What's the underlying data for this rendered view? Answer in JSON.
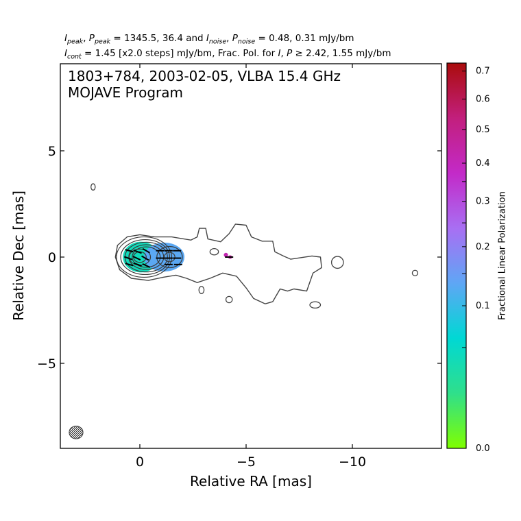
{
  "header": {
    "line1": {
      "i_peak_sym": "I",
      "i_peak_sub": "peak",
      "p_peak_sym": "P",
      "p_peak_sub": "peak",
      "peak_values": " = 1345.5, 36.4 and ",
      "i_noise_sym": "I",
      "i_noise_sub": "noise",
      "p_noise_sym": "P",
      "p_noise_sub": "noise",
      "noise_values": " = 0.48, 0.31 mJy/bm"
    },
    "line2": {
      "i_cont_sym": "I",
      "i_cont_sub": "cont",
      "cont_text": " = 1.45 [x2.0 steps] mJy/bm, Frac. Pol. for ",
      "i_sym": "I",
      "comma": ", ",
      "p_sym": "P",
      "threshold_text": " ≥ 2.42, 1.55 mJy/bm"
    }
  },
  "annotation": {
    "line1": "1803+784, 2003-02-05, VLBA 15.4 GHz",
    "line2": "MOJAVE Program"
  },
  "chart_data": {
    "type": "contour",
    "source": "1803+784",
    "epoch": "2003-02-05",
    "instrument": "VLBA 15.4 GHz",
    "program": "MOJAVE Program",
    "xlabel": "Relative RA [mas]",
    "ylabel": "Relative Dec [mas]",
    "xlim": [
      3.8,
      -14.1
    ],
    "ylim": [
      -9.0,
      9.2
    ],
    "x_ticks": [
      0,
      -5,
      -10
    ],
    "x_tick_labels": [
      "0",
      "−5",
      "−10"
    ],
    "y_ticks": [
      5,
      0,
      -5
    ],
    "y_tick_labels": [
      "5",
      "0",
      "−5"
    ],
    "grid": false,
    "i_peak_mjy_per_beam": 1345.5,
    "p_peak_mjy_per_beam": 36.4,
    "i_noise_mjy_per_beam": 0.48,
    "p_noise_mjy_per_beam": 0.31,
    "i_cont_lowest_mjy_per_beam": 1.45,
    "contour_step_factor": 2.0,
    "frac_pol_cut_i_mjy_per_beam": 2.42,
    "frac_pol_cut_p_mjy_per_beam": 1.55,
    "beam": {
      "x": 3.0,
      "y": -8.25,
      "major_mas": 0.65,
      "minor_mas": 0.6
    },
    "jet_outline": [
      [
        1.15,
        0.0
      ],
      [
        1.05,
        0.55
      ],
      [
        0.6,
        0.95
      ],
      [
        0.0,
        1.05
      ],
      [
        -0.7,
        0.95
      ],
      [
        -1.5,
        0.95
      ],
      [
        -2.4,
        0.8
      ],
      [
        -2.7,
        0.95
      ],
      [
        -2.8,
        1.35
      ],
      [
        -3.1,
        1.35
      ],
      [
        -3.2,
        0.85
      ],
      [
        -3.8,
        0.72
      ],
      [
        -4.2,
        1.1
      ],
      [
        -4.5,
        1.55
      ],
      [
        -5.0,
        1.5
      ],
      [
        -5.25,
        0.95
      ],
      [
        -5.75,
        0.75
      ],
      [
        -6.25,
        0.75
      ],
      [
        -6.35,
        0.25
      ],
      [
        -6.75,
        0.05
      ],
      [
        -7.1,
        -0.1
      ],
      [
        -8.1,
        0.05
      ],
      [
        -8.5,
        0.0
      ],
      [
        -8.55,
        -0.5
      ],
      [
        -8.15,
        -0.75
      ],
      [
        -7.85,
        -1.6
      ],
      [
        -7.25,
        -1.5
      ],
      [
        -6.95,
        -1.6
      ],
      [
        -6.6,
        -1.5
      ],
      [
        -6.25,
        -2.1
      ],
      [
        -5.9,
        -2.2
      ],
      [
        -5.35,
        -1.95
      ],
      [
        -5.0,
        -1.45
      ],
      [
        -4.55,
        -0.9
      ],
      [
        -3.9,
        -0.75
      ],
      [
        -3.3,
        -1.0
      ],
      [
        -2.7,
        -1.2
      ],
      [
        -2.2,
        -1.0
      ],
      [
        -1.7,
        -0.85
      ],
      [
        -1.1,
        -0.95
      ],
      [
        -0.4,
        -1.1
      ],
      [
        0.4,
        -1.0
      ],
      [
        0.95,
        -0.6
      ]
    ],
    "inner_contours": [
      {
        "x": -0.2,
        "y": 0.0,
        "rx": 1.3,
        "ry": 0.95
      },
      {
        "x": -0.25,
        "y": 0.0,
        "rx": 1.15,
        "ry": 0.82
      },
      {
        "x": -0.3,
        "y": 0.0,
        "rx": 1.0,
        "ry": 0.7
      },
      {
        "x": -0.3,
        "y": 0.0,
        "rx": 0.82,
        "ry": 0.58
      },
      {
        "x": -0.3,
        "y": 0.0,
        "rx": 0.66,
        "ry": 0.48
      },
      {
        "x": 0.0,
        "y": 0.0,
        "rx": 0.5,
        "ry": 0.38
      },
      {
        "x": 0.0,
        "y": 0.0,
        "rx": 0.3,
        "ry": 0.25
      },
      {
        "x": -1.4,
        "y": 0.0,
        "rx": 0.6,
        "ry": 0.5
      },
      {
        "x": -1.4,
        "y": 0.0,
        "rx": 0.25,
        "ry": 0.22
      }
    ],
    "isolated_components": [
      {
        "x": 2.2,
        "y": 3.3,
        "rx": 0.1,
        "ry": 0.15
      },
      {
        "x": -9.3,
        "y": -0.25,
        "rx": 0.28,
        "ry": 0.28
      },
      {
        "x": -12.95,
        "y": -0.75,
        "rx": 0.13,
        "ry": 0.13
      },
      {
        "x": -8.25,
        "y": -2.25,
        "rx": 0.25,
        "ry": 0.15
      },
      {
        "x": -4.2,
        "y": -2.0,
        "rx": 0.15,
        "ry": 0.15
      },
      {
        "x": -2.9,
        "y": -1.55,
        "rx": 0.12,
        "ry": 0.17
      },
      {
        "x": -3.5,
        "y": 0.25,
        "rx": 0.2,
        "ry": 0.15
      }
    ],
    "fractional_polarization_regions": [
      {
        "x": -0.05,
        "y": 0.0,
        "rx": 0.85,
        "ry": 0.72,
        "frac_pol": 0.04
      },
      {
        "x": -1.15,
        "y": 0.0,
        "rx": 0.95,
        "ry": 0.68,
        "frac_pol": 0.13
      },
      {
        "x": -4.05,
        "y": 0.1,
        "rx": 0.1,
        "ry": 0.1,
        "frac_pol": 0.42
      },
      {
        "x": -4.25,
        "y": 0.0,
        "rx": 0.1,
        "ry": 0.08,
        "frac_pol": 0.45
      }
    ],
    "evpa_vectors": [
      {
        "x": 0.5,
        "y": 0.3,
        "angle_deg": 15
      },
      {
        "x": 0.1,
        "y": 0.25,
        "angle_deg": 20
      },
      {
        "x": -0.3,
        "y": 0.3,
        "angle_deg": 30
      },
      {
        "x": 0.55,
        "y": -0.05,
        "angle_deg": 20
      },
      {
        "x": 0.15,
        "y": -0.05,
        "angle_deg": 25
      },
      {
        "x": -0.25,
        "y": -0.05,
        "angle_deg": 30
      },
      {
        "x": 0.5,
        "y": -0.35,
        "angle_deg": 15
      },
      {
        "x": 0.1,
        "y": -0.35,
        "angle_deg": 20
      },
      {
        "x": -0.3,
        "y": -0.4,
        "angle_deg": 25
      },
      {
        "x": -0.95,
        "y": 0.3,
        "angle_deg": 0
      },
      {
        "x": -1.35,
        "y": 0.3,
        "angle_deg": 0
      },
      {
        "x": -1.75,
        "y": 0.3,
        "angle_deg": 0
      },
      {
        "x": -0.95,
        "y": -0.05,
        "angle_deg": 0
      },
      {
        "x": -1.35,
        "y": -0.05,
        "angle_deg": 0
      },
      {
        "x": -1.75,
        "y": -0.05,
        "angle_deg": 0
      },
      {
        "x": -1.35,
        "y": -0.35,
        "angle_deg": 0
      },
      {
        "x": -1.8,
        "y": -0.35,
        "angle_deg": 0
      },
      {
        "x": -4.2,
        "y": 0.0,
        "angle_deg": 0
      }
    ],
    "colorbar": {
      "label": "Fractional Linear Polarization",
      "range": [
        0.0,
        0.73
      ],
      "scale": "sqrt",
      "ticks": [
        0.0,
        0.05,
        0.1,
        0.15,
        0.2,
        0.25,
        0.3,
        0.35,
        0.4,
        0.5,
        0.6,
        0.7
      ],
      "tick_labels": [
        "0.0",
        "",
        "0.1",
        "",
        "0.2",
        "",
        "0.3",
        "",
        "0.4",
        "0.5",
        "0.6",
        "0.7"
      ],
      "colors": [
        "#7fff00",
        "#2fdf8b",
        "#00d8d4",
        "#5fa6f5",
        "#a86ff3",
        "#c32ac8",
        "#c21f7d",
        "#aa0c0c"
      ]
    }
  }
}
